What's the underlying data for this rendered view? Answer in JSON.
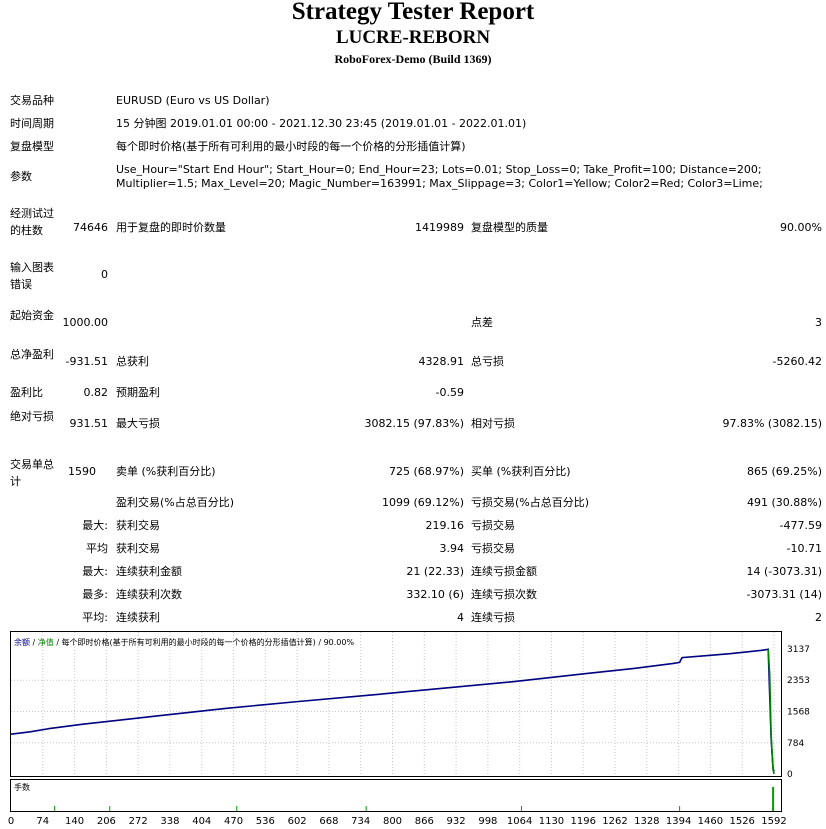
{
  "header": {
    "title": "Strategy Tester Report",
    "ea_name": "LUCRE-REBORN",
    "server": "RoboForex-Demo (Build 1369)"
  },
  "info": {
    "symbol_label": "交易品种",
    "symbol_value": "EURUSD (Euro vs US Dollar)",
    "period_label": "时间周期",
    "period_value": "15 分钟图 2019.01.01 00:00 - 2021.12.30 23:45 (2019.01.01 - 2022.01.01)",
    "model_label": "复盘模型",
    "model_value": "每个即时价格(基于所有可利用的最小时段的每一个价格的分形插值计算)",
    "params_label": "参数",
    "params_line1": "Use_Hour=\"Start End Hour\"; Start_Hour=0; End_Hour=23; Lots=0.01; Stop_Loss=0; Take_Profit=100; Distance=200;",
    "params_line2": "Multiplier=1.5; Max_Level=20; Magic_Number=163991; Max_Slippage=3; Color1=Yellow; Color2=Red; Color3=Lime;"
  },
  "stats": {
    "bars_label": "经测试过的柱数",
    "bars_value": "74646",
    "ticks_label": "用于复盘的即时价数量",
    "ticks_value": "1419989",
    "quality_label": "复盘模型的质量",
    "quality_value": "90.00%",
    "errors_label": "输入图表错误",
    "errors_value": "0",
    "deposit_label": "起始资金",
    "deposit_value": "1000.00",
    "spread_label": "点差",
    "spread_value": "3",
    "net_label": "总净盈利",
    "net_value": "-931.51",
    "gross_profit_label": "总获利",
    "gross_profit_value": "4328.91",
    "gross_loss_label": "总亏损",
    "gross_loss_value": "-5260.42",
    "pf_label": "盈利比",
    "pf_value": "0.82",
    "payoff_label": "预期盈利",
    "payoff_value": "-0.59",
    "abs_dd_label": "绝对亏损",
    "abs_dd_value": "931.51",
    "max_dd_label": "最大亏损",
    "max_dd_value": "3082.15 (97.83%)",
    "rel_dd_label": "相对亏损",
    "rel_dd_value": "97.83% (3082.15)",
    "trades_label": "交易单总计",
    "trades_value": "1590",
    "short_label": "卖单 (%获利百分比)",
    "short_value": "725 (68.97%)",
    "long_label": "买单 (%获利百分比)",
    "long_value": "865 (69.25%)",
    "win_label": "盈利交易(%占总百分比)",
    "win_value": "1099 (69.12%)",
    "loss_label": "亏损交易(%占总百分比)",
    "loss_value": "491 (30.88%)",
    "largest_prefix": "最大:",
    "largest_win_label": "获利交易",
    "largest_win_value": "219.16",
    "largest_loss_label": "亏损交易",
    "largest_loss_value": "-477.59",
    "avg_prefix": "平均",
    "avg_win_label": "获利交易",
    "avg_win_value": "3.94",
    "avg_loss_label": "亏损交易",
    "avg_loss_value": "-10.71",
    "max_prefix": "最大:",
    "max_cons_win_label": "连续获利金额",
    "max_cons_win_value": "21 (22.33)",
    "max_cons_loss_label": "连续亏损金额",
    "max_cons_loss_value": "14 (-3073.31)",
    "most_prefix": "最多:",
    "most_cons_profit_label": "连续获利次数",
    "most_cons_profit_value": "332.10 (6)",
    "most_cons_loss_label": "连续亏损次数",
    "most_cons_loss_value": "-3073.31 (14)",
    "avg2_prefix": "平均:",
    "avg_cons_win_label": "连续获利",
    "avg_cons_win_value": "4",
    "avg_cons_loss_label": "连续亏损",
    "avg_cons_loss_value": "2"
  },
  "chart_data": {
    "type": "line",
    "legend_balance": "余额",
    "legend_sep": " / ",
    "legend_equity": "净值",
    "legend_rest": " / 每个即时价格(基于所有可利用的最小时段的每一个价格的分形插值计算) / 90.00%",
    "volume_label": "手数",
    "y_ticks": [
      "3137",
      "2353",
      "1568",
      "784",
      "0"
    ],
    "ylim": [
      0,
      3137
    ],
    "x_ticks": [
      "0",
      "74",
      "140",
      "206",
      "272",
      "338",
      "404",
      "470",
      "536",
      "602",
      "668",
      "734",
      "800",
      "866",
      "932",
      "998",
      "1064",
      "1130",
      "1196",
      "1262",
      "1328",
      "1394",
      "1460",
      "1526",
      "1592"
    ],
    "xlim": [
      0,
      1592
    ],
    "series": [
      {
        "name": "余额",
        "color": "#000080",
        "x": [
          0,
          40,
          75,
          80,
          150,
          300,
          450,
          600,
          750,
          900,
          1050,
          1200,
          1300,
          1380,
          1395,
          1400,
          1450,
          1500,
          1570,
          1580,
          1586,
          1590,
          1592
        ],
        "y": [
          1000,
          1060,
          1130,
          1140,
          1250,
          1450,
          1650,
          1820,
          1980,
          2150,
          2320,
          2520,
          2650,
          2770,
          2800,
          2920,
          2970,
          3020,
          3110,
          3130,
          900,
          150,
          68
        ]
      },
      {
        "name": "净值",
        "color": "#008000",
        "x": [
          1580,
          1583,
          1586,
          1590,
          1592
        ],
        "y": [
          3130,
          2500,
          1000,
          120,
          0
        ]
      }
    ],
    "volume_color": "#00a000"
  },
  "colors": {
    "balance": "#000080",
    "equity": "#008000",
    "grid": "#c8c8c8"
  }
}
